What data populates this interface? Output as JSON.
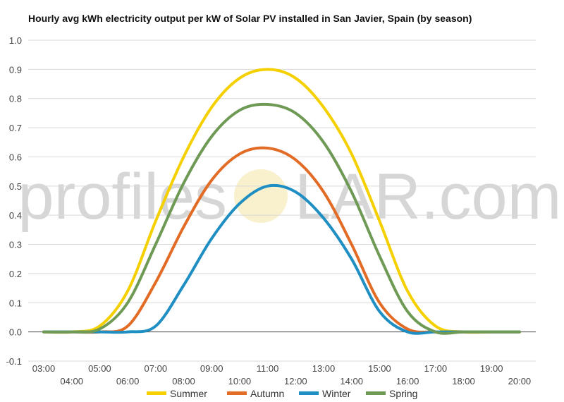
{
  "chart_data": {
    "type": "line",
    "title": "Hourly avg kWh electricity output per kW of Solar PV installed in San Javier, Spain (by season)",
    "xlabel": "",
    "ylabel": "",
    "x": [
      "03:00",
      "04:00",
      "05:00",
      "06:00",
      "07:00",
      "08:00",
      "09:00",
      "10:00",
      "11:00",
      "12:00",
      "13:00",
      "14:00",
      "15:00",
      "16:00",
      "17:00",
      "18:00",
      "19:00",
      "20:00"
    ],
    "ylim": [
      -0.1,
      1.0
    ],
    "yticks": [
      -0.1,
      0.0,
      0.1,
      0.2,
      0.3,
      0.4,
      0.5,
      0.6,
      0.7,
      0.8,
      0.9,
      1.0
    ],
    "ytick_labels": [
      "-0.1",
      "0.0",
      "0.1",
      "0.2",
      "0.3",
      "0.4",
      "0.5",
      "0.6",
      "0.7",
      "0.8",
      "0.9",
      "1.0"
    ],
    "grid": true,
    "legend_position": "bottom",
    "watermark": {
      "left": "profiles",
      "right": "LAR.com"
    },
    "series": [
      {
        "name": "Summer",
        "color": "#f5d000",
        "values": [
          0.0,
          0.0,
          0.02,
          0.14,
          0.38,
          0.6,
          0.77,
          0.87,
          0.9,
          0.87,
          0.77,
          0.61,
          0.38,
          0.14,
          0.02,
          0.0,
          0.0,
          0.0
        ]
      },
      {
        "name": "Autumn",
        "color": "#e26b25",
        "values": [
          0.0,
          0.0,
          0.0,
          0.02,
          0.17,
          0.36,
          0.52,
          0.61,
          0.63,
          0.59,
          0.48,
          0.3,
          0.1,
          0.01,
          0.0,
          0.0,
          0.0,
          0.0
        ]
      },
      {
        "name": "Winter",
        "color": "#1f8ec2",
        "values": [
          0.0,
          0.0,
          0.0,
          0.0,
          0.02,
          0.16,
          0.32,
          0.44,
          0.5,
          0.48,
          0.39,
          0.25,
          0.07,
          0.0,
          0.0,
          0.0,
          0.0,
          0.0
        ]
      },
      {
        "name": "Spring",
        "color": "#6e9a55",
        "values": [
          0.0,
          0.0,
          0.01,
          0.1,
          0.3,
          0.51,
          0.67,
          0.76,
          0.78,
          0.75,
          0.65,
          0.48,
          0.26,
          0.07,
          0.0,
          0.0,
          0.0,
          0.0
        ]
      }
    ]
  }
}
